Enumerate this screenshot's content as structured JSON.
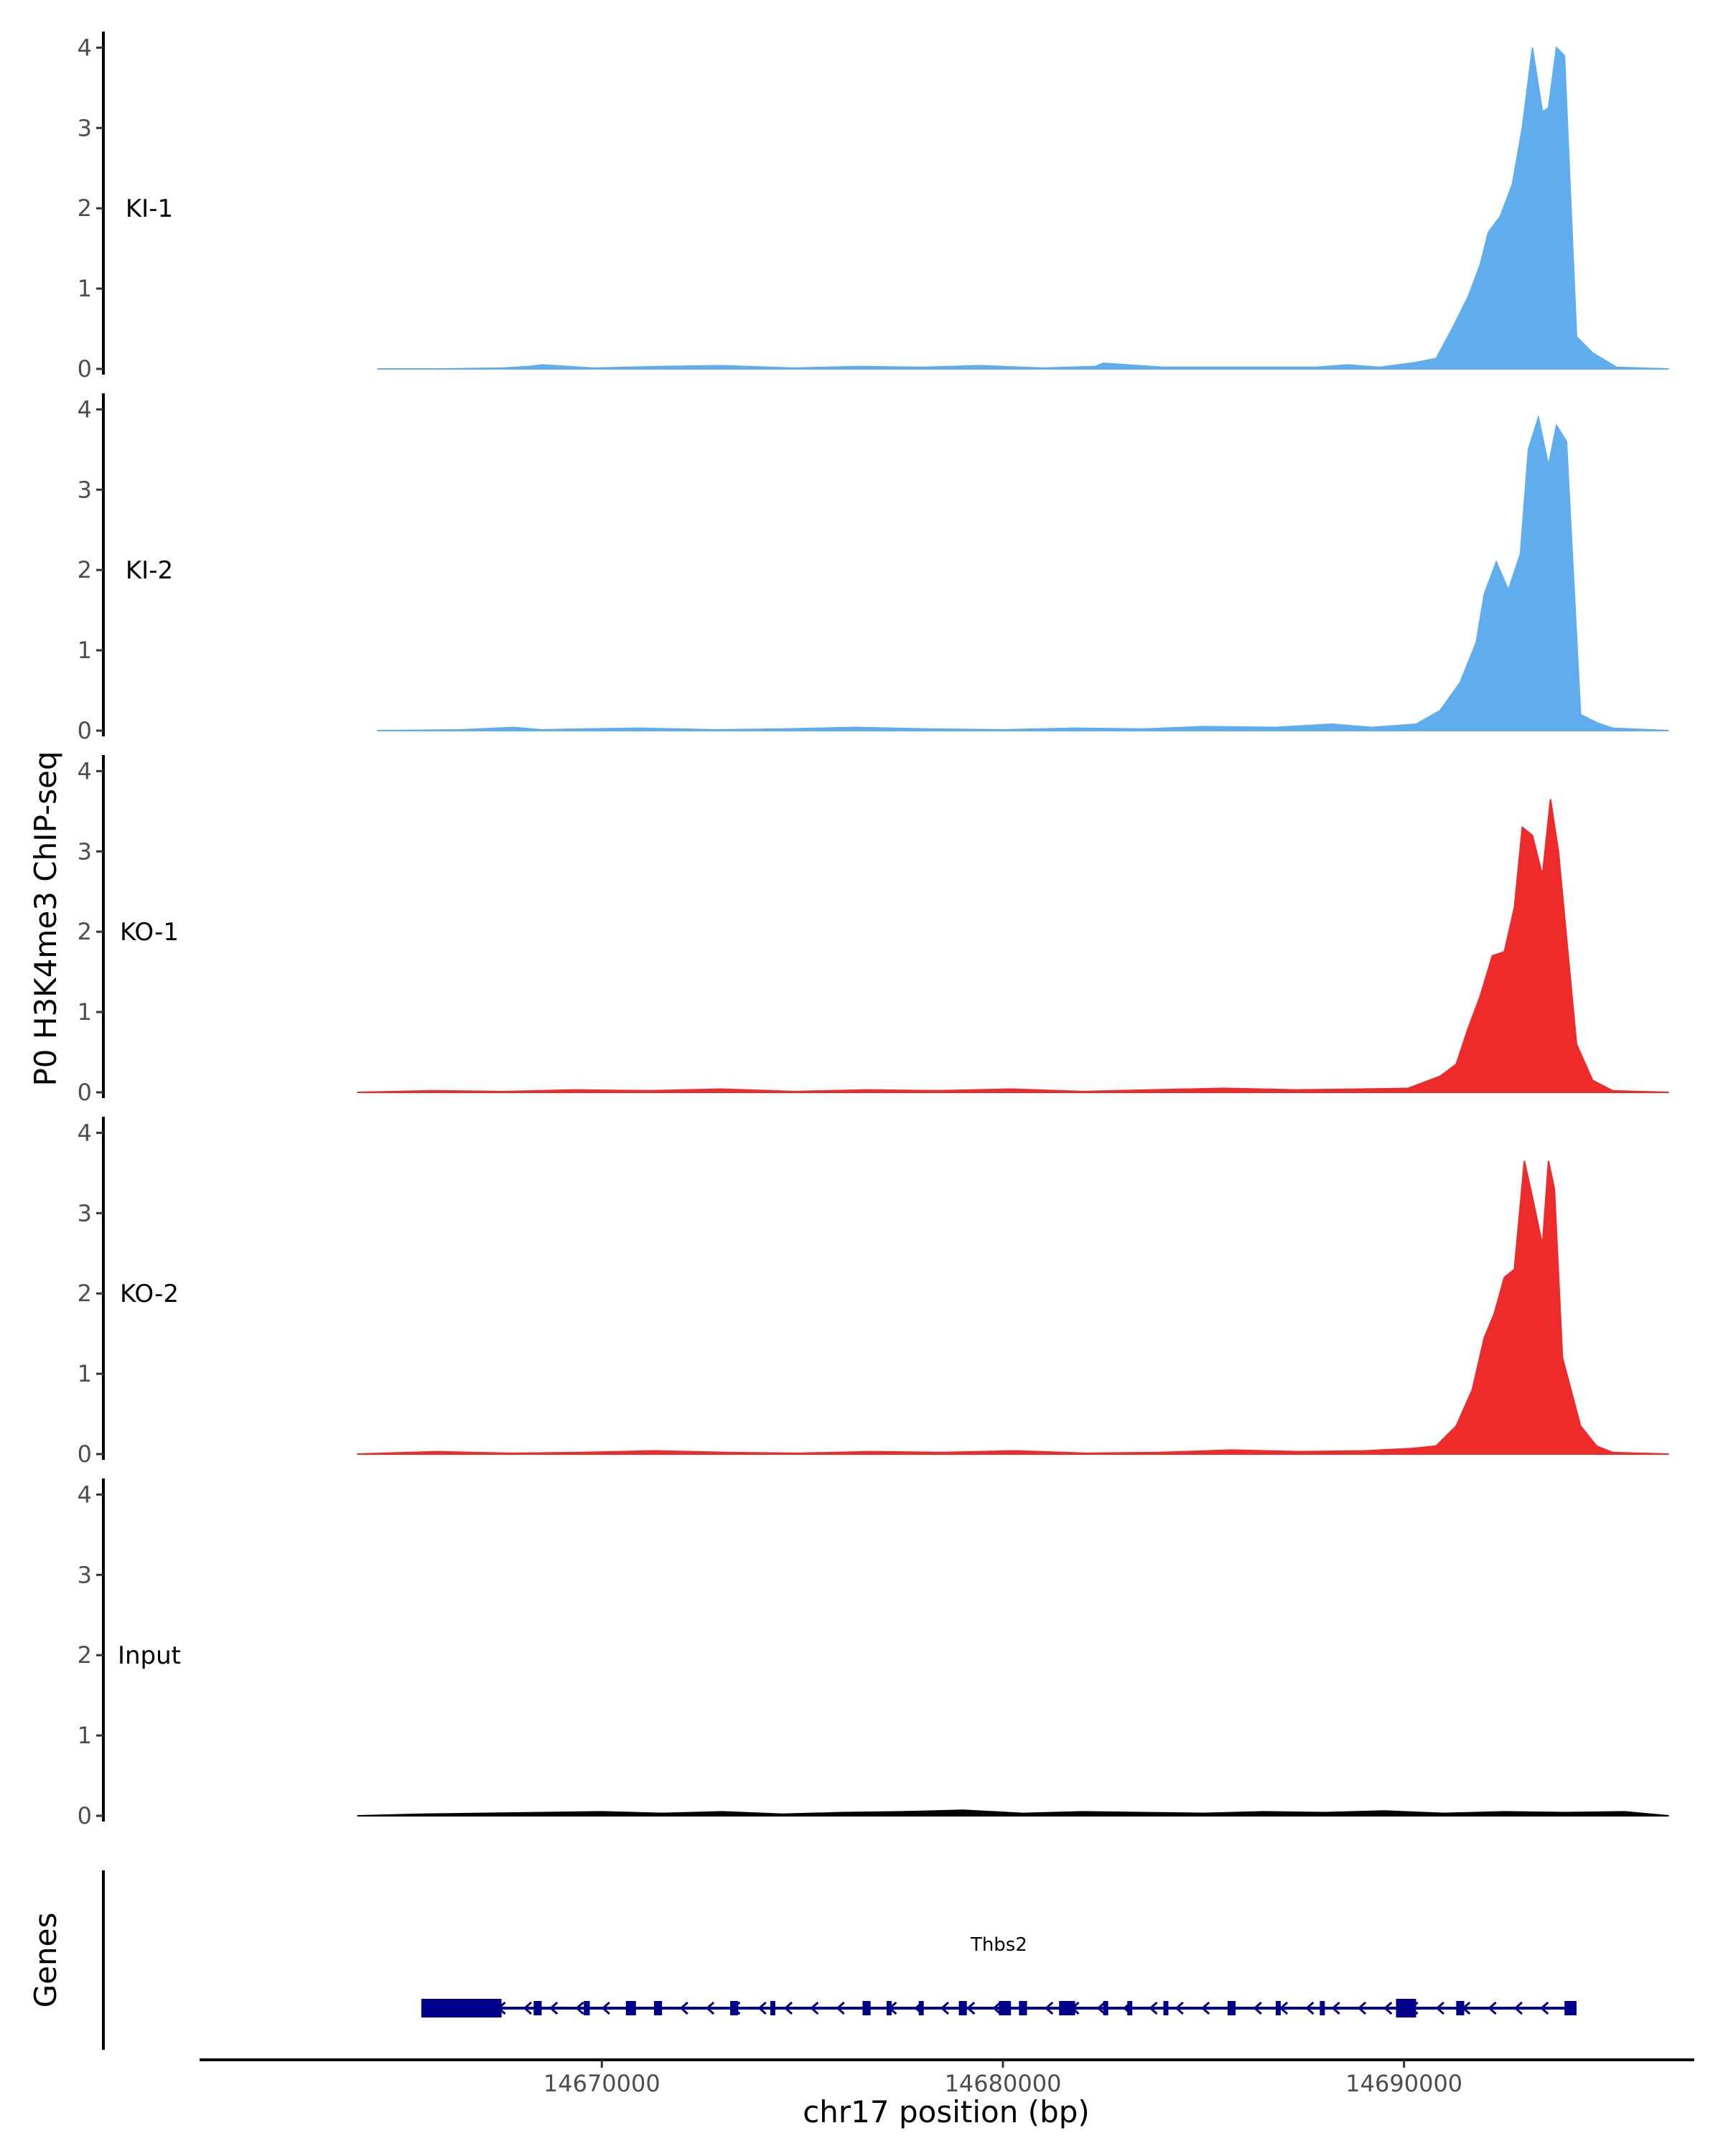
{
  "chart_data": {
    "type": "area",
    "ylabel": "P0 H3K4me3 ChIP-seq",
    "xlabel": "chr17 position (bp)",
    "x_ticks": [
      14670000,
      14680000,
      14690000
    ],
    "x_tick_labels": [
      "14670000",
      "14680000",
      "14690000"
    ],
    "y_ticks": [
      0,
      1,
      2,
      3,
      4
    ],
    "y_tick_labels": [
      "0",
      "1",
      "2",
      "3",
      "4"
    ],
    "ylim": [
      0,
      4.2
    ],
    "xlim": [
      14659900,
      14697200
    ],
    "grid": false,
    "series": [
      {
        "name": "KI-1",
        "color": "#60aded",
        "x": [
          14664400,
          14666000,
          14667500,
          14668200,
          14668500,
          14669800,
          14671500,
          14673000,
          14674800,
          14676400,
          14678000,
          14679400,
          14681000,
          14682300,
          14682500,
          14684000,
          14686000,
          14687800,
          14688600,
          14689400,
          14690300,
          14690800,
          14691200,
          14691600,
          14691900,
          14692100,
          14692400,
          14692700,
          14692950,
          14693200,
          14693450,
          14693600,
          14693800,
          14694000,
          14694300,
          14694700,
          14695300,
          14696600
        ],
        "values": [
          0,
          0,
          0.01,
          0.03,
          0.05,
          0.01,
          0.03,
          0.04,
          0.01,
          0.03,
          0.02,
          0.04,
          0.01,
          0.03,
          0.07,
          0.02,
          0.02,
          0.02,
          0.05,
          0.02,
          0.08,
          0.13,
          0.5,
          0.9,
          1.3,
          1.7,
          1.9,
          2.3,
          3.0,
          4.0,
          3.2,
          3.25,
          4.0,
          3.9,
          0.4,
          0.2,
          0.02,
          0
        ],
        "ylim": [
          0,
          4.2
        ]
      },
      {
        "name": "KI-2",
        "color": "#60aded",
        "x": [
          14664400,
          14666500,
          14667800,
          14668500,
          14669500,
          14671000,
          14672800,
          14674500,
          14676300,
          14678200,
          14680000,
          14681800,
          14683500,
          14685000,
          14686800,
          14688200,
          14689200,
          14690300,
          14690900,
          14691400,
          14691800,
          14692000,
          14692300,
          14692600,
          14692900,
          14693100,
          14693350,
          14693600,
          14693800,
          14694050,
          14694400,
          14694800,
          14695200,
          14696600
        ],
        "values": [
          0,
          0.01,
          0.04,
          0.01,
          0.02,
          0.03,
          0.01,
          0.02,
          0.04,
          0.02,
          0.01,
          0.03,
          0.02,
          0.05,
          0.04,
          0.08,
          0.04,
          0.08,
          0.25,
          0.6,
          1.1,
          1.7,
          2.1,
          1.75,
          2.2,
          3.5,
          3.9,
          3.3,
          3.8,
          3.6,
          0.2,
          0.1,
          0.03,
          0
        ],
        "ylim": [
          0,
          4.2
        ]
      },
      {
        "name": "KO-1",
        "color": "#ee2b2b",
        "x": [
          14663900,
          14665800,
          14667600,
          14669300,
          14671200,
          14673000,
          14674800,
          14676600,
          14678400,
          14680200,
          14682000,
          14683700,
          14685500,
          14687300,
          14688900,
          14690100,
          14690900,
          14691300,
          14691600,
          14691900,
          14692200,
          14692500,
          14692750,
          14692950,
          14693200,
          14693450,
          14693650,
          14693850,
          14694300,
          14694700,
          14695200,
          14696600
        ],
        "values": [
          0,
          0.02,
          0.01,
          0.03,
          0.02,
          0.04,
          0.01,
          0.03,
          0.02,
          0.04,
          0.01,
          0.03,
          0.05,
          0.03,
          0.04,
          0.05,
          0.2,
          0.35,
          0.8,
          1.2,
          1.7,
          1.75,
          2.3,
          3.3,
          3.2,
          2.7,
          3.65,
          3.0,
          0.6,
          0.15,
          0.02,
          0
        ],
        "ylim": [
          0,
          4.2
        ]
      },
      {
        "name": "KO-2",
        "color": "#ee2b2b",
        "x": [
          14663900,
          14665900,
          14667700,
          14669500,
          14671300,
          14673100,
          14674900,
          14676700,
          14678500,
          14680300,
          14682100,
          14683900,
          14685700,
          14687400,
          14689000,
          14690200,
          14690800,
          14691300,
          14691700,
          14692000,
          14692250,
          14692500,
          14692750,
          14693000,
          14693200,
          14693450,
          14693600,
          14693750,
          14693950,
          14694400,
          14694800,
          14695200,
          14696600
        ],
        "values": [
          0,
          0.03,
          0.01,
          0.02,
          0.04,
          0.02,
          0.01,
          0.03,
          0.02,
          0.04,
          0.01,
          0.02,
          0.05,
          0.03,
          0.04,
          0.07,
          0.1,
          0.35,
          0.8,
          1.45,
          1.75,
          2.2,
          2.3,
          3.65,
          3.2,
          2.6,
          3.65,
          3.3,
          1.2,
          0.35,
          0.1,
          0.02,
          0
        ],
        "ylim": [
          0,
          4.2
        ]
      },
      {
        "name": "Input",
        "color": "#000000",
        "x": [
          14663900,
          14665500,
          14667000,
          14668500,
          14670000,
          14671500,
          14673000,
          14674500,
          14676000,
          14677500,
          14679000,
          14680500,
          14682000,
          14683500,
          14685000,
          14686500,
          14688000,
          14689500,
          14691000,
          14692500,
          14694000,
          14695500,
          14696600
        ],
        "values": [
          0,
          0.02,
          0.03,
          0.04,
          0.05,
          0.03,
          0.05,
          0.02,
          0.04,
          0.05,
          0.07,
          0.03,
          0.05,
          0.04,
          0.03,
          0.05,
          0.04,
          0.06,
          0.03,
          0.05,
          0.04,
          0.05,
          0
        ],
        "ylim": [
          0,
          4.2
        ]
      }
    ],
    "gene_track": {
      "title": "Genes",
      "gene": "Thbs2",
      "strand": "-",
      "color": "#00008b",
      "start": 14665500,
      "end": 14694300,
      "exons": [
        {
          "start": 14665500,
          "end": 14667500,
          "thick": true
        },
        {
          "start": 14668300,
          "end": 14668500
        },
        {
          "start": 14669550,
          "end": 14669700
        },
        {
          "start": 14670600,
          "end": 14670850
        },
        {
          "start": 14671300,
          "end": 14671500
        },
        {
          "start": 14673200,
          "end": 14673400
        },
        {
          "start": 14674200,
          "end": 14674300
        },
        {
          "start": 14676500,
          "end": 14676700
        },
        {
          "start": 14677100,
          "end": 14677200
        },
        {
          "start": 14677900,
          "end": 14678000
        },
        {
          "start": 14678900,
          "end": 14679100
        },
        {
          "start": 14679900,
          "end": 14680200
        },
        {
          "start": 14680400,
          "end": 14680600
        },
        {
          "start": 14681400,
          "end": 14681800
        },
        {
          "start": 14682500,
          "end": 14682600
        },
        {
          "start": 14683100,
          "end": 14683200
        },
        {
          "start": 14684000,
          "end": 14684100
        },
        {
          "start": 14685600,
          "end": 14685800
        },
        {
          "start": 14686800,
          "end": 14686900
        },
        {
          "start": 14687900,
          "end": 14688000
        },
        {
          "start": 14689800,
          "end": 14690300,
          "thick": true
        },
        {
          "start": 14691300,
          "end": 14691500
        },
        {
          "start": 14694000,
          "end": 14694300
        }
      ]
    }
  }
}
